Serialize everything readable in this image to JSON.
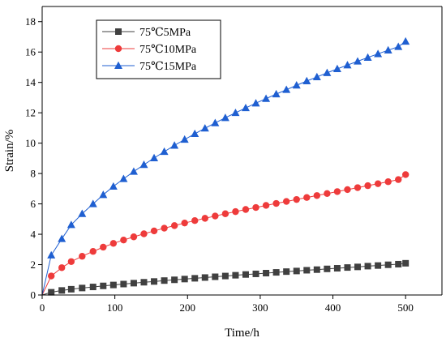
{
  "chart_data": {
    "type": "line",
    "title": "",
    "xlabel": "Time/h",
    "ylabel": "Strain/%",
    "xlim": [
      0,
      550
    ],
    "ylim": [
      0,
      19
    ],
    "xticks": [
      0,
      100,
      200,
      300,
      400,
      500
    ],
    "xtick_labels": [
      "0",
      "100",
      "200",
      "300",
      "400",
      "500"
    ],
    "yticks": [
      0,
      2,
      4,
      6,
      8,
      10,
      12,
      14,
      16,
      18
    ],
    "ytick_labels": [
      "0",
      "2",
      "4",
      "6",
      "8",
      "10",
      "12",
      "14",
      "16",
      "18"
    ],
    "grid": false,
    "legend_position": "top-left",
    "x": [
      0,
      12.5,
      27,
      40,
      55,
      70,
      84,
      98,
      112,
      126,
      140,
      154,
      168,
      182,
      196,
      210,
      224,
      238,
      252,
      266,
      280,
      294,
      308,
      322,
      336,
      350,
      364,
      378,
      392,
      406,
      420,
      434,
      448,
      462,
      476,
      490,
      500
    ],
    "series": [
      {
        "name": "75℃5MPa",
        "color": "#404040",
        "marker": "square",
        "values": [
          0,
          0.18,
          0.3,
          0.38,
          0.46,
          0.53,
          0.6,
          0.66,
          0.72,
          0.78,
          0.84,
          0.89,
          0.95,
          1.0,
          1.05,
          1.1,
          1.15,
          1.2,
          1.25,
          1.3,
          1.35,
          1.39,
          1.44,
          1.49,
          1.54,
          1.58,
          1.63,
          1.67,
          1.72,
          1.76,
          1.81,
          1.85,
          1.9,
          1.94,
          1.99,
          2.03,
          2.09
        ]
      },
      {
        "name": "75℃10MPa",
        "color": "#ee3b3b",
        "marker": "circle",
        "values": [
          0,
          1.25,
          1.8,
          2.2,
          2.55,
          2.87,
          3.15,
          3.4,
          3.62,
          3.83,
          4.03,
          4.22,
          4.4,
          4.57,
          4.74,
          4.9,
          5.05,
          5.2,
          5.35,
          5.49,
          5.63,
          5.76,
          5.9,
          6.03,
          6.16,
          6.29,
          6.42,
          6.55,
          6.68,
          6.81,
          6.94,
          7.07,
          7.2,
          7.33,
          7.46,
          7.6,
          7.93
        ]
      },
      {
        "name": "75℃15MPa",
        "color": "#1f5fd1",
        "marker": "triangle",
        "values": [
          0,
          2.62,
          3.7,
          4.62,
          5.35,
          6.0,
          6.6,
          7.15,
          7.65,
          8.13,
          8.58,
          9.02,
          9.44,
          9.85,
          10.24,
          10.62,
          10.98,
          11.33,
          11.67,
          12.0,
          12.32,
          12.63,
          12.93,
          13.23,
          13.52,
          13.81,
          14.09,
          14.36,
          14.63,
          14.89,
          15.14,
          15.39,
          15.64,
          15.88,
          16.12,
          16.35,
          16.7
        ]
      }
    ]
  }
}
